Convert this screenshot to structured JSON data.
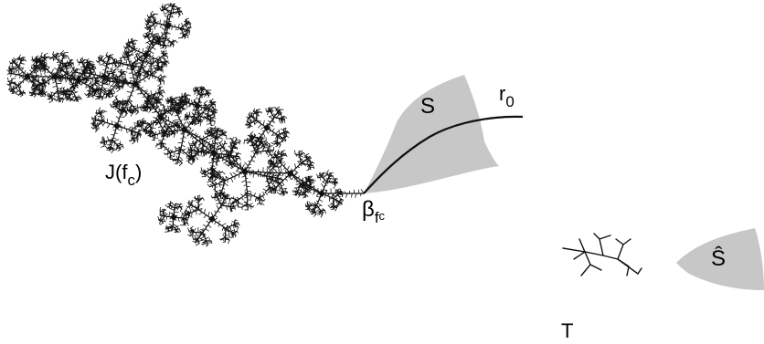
{
  "labels": {
    "julia_main": "J",
    "julia_paren_open": "(",
    "julia_f": "f",
    "julia_c": "c",
    "julia_paren_close": ")",
    "beta": "β",
    "beta_f": "f",
    "beta_c": "c",
    "sector_S": "S",
    "ray_r": "r",
    "ray_sub": "0",
    "tree_T": "T",
    "sector_S_hat": "Ŝ"
  },
  "colors": {
    "ink": "#111111",
    "sector_fill": "#bdbdbd"
  }
}
